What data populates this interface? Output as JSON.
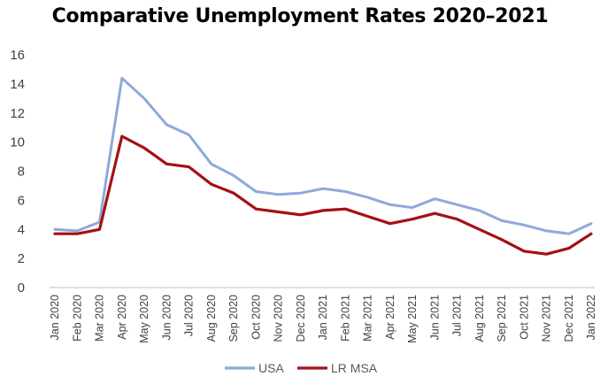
{
  "chart_data": {
    "type": "line",
    "title": "Comparative Unemployment Rates 2020–2021",
    "xlabel": "",
    "ylabel": "",
    "ylim": [
      0,
      16
    ],
    "yticks": [
      "0",
      "2",
      "4",
      "6",
      "8",
      "10",
      "12",
      "14",
      "16"
    ],
    "grid": false,
    "legend_position": "bottom-center",
    "categories": [
      "Jan 2020",
      "Feb 2020",
      "Mar 2020",
      "Apr 2020",
      "May 2020",
      "Jun 2020",
      "Jul 2020",
      "Aug 2020",
      "Sep 2020",
      "Oct 2020",
      "Nov 2020",
      "Dec 2020",
      "Jan 2021",
      "Feb 2021",
      "Mar 2021",
      "Apr 2021",
      "May 2021",
      "Jun 2021",
      "Jul 2021",
      "Aug 2021",
      "Sep 2021",
      "Oct 2021",
      "Nov 2021",
      "Dec 2021",
      "Jan 2022"
    ],
    "series": [
      {
        "name": "USA",
        "color": "#8EA9DB",
        "values": [
          4.0,
          3.9,
          4.5,
          14.4,
          13.0,
          11.2,
          10.5,
          8.5,
          7.7,
          6.6,
          6.4,
          6.5,
          6.8,
          6.6,
          6.2,
          5.7,
          5.5,
          6.1,
          5.7,
          5.3,
          4.6,
          4.3,
          3.9,
          3.7,
          4.4
        ]
      },
      {
        "name": "LR MSA",
        "color": "#A50F15",
        "values": [
          3.7,
          3.7,
          4.0,
          10.4,
          9.6,
          8.5,
          8.3,
          7.1,
          6.5,
          5.4,
          5.2,
          5.0,
          5.3,
          5.4,
          4.9,
          4.4,
          4.7,
          5.1,
          4.7,
          4.0,
          3.3,
          2.5,
          2.3,
          2.7,
          3.7
        ]
      }
    ]
  }
}
